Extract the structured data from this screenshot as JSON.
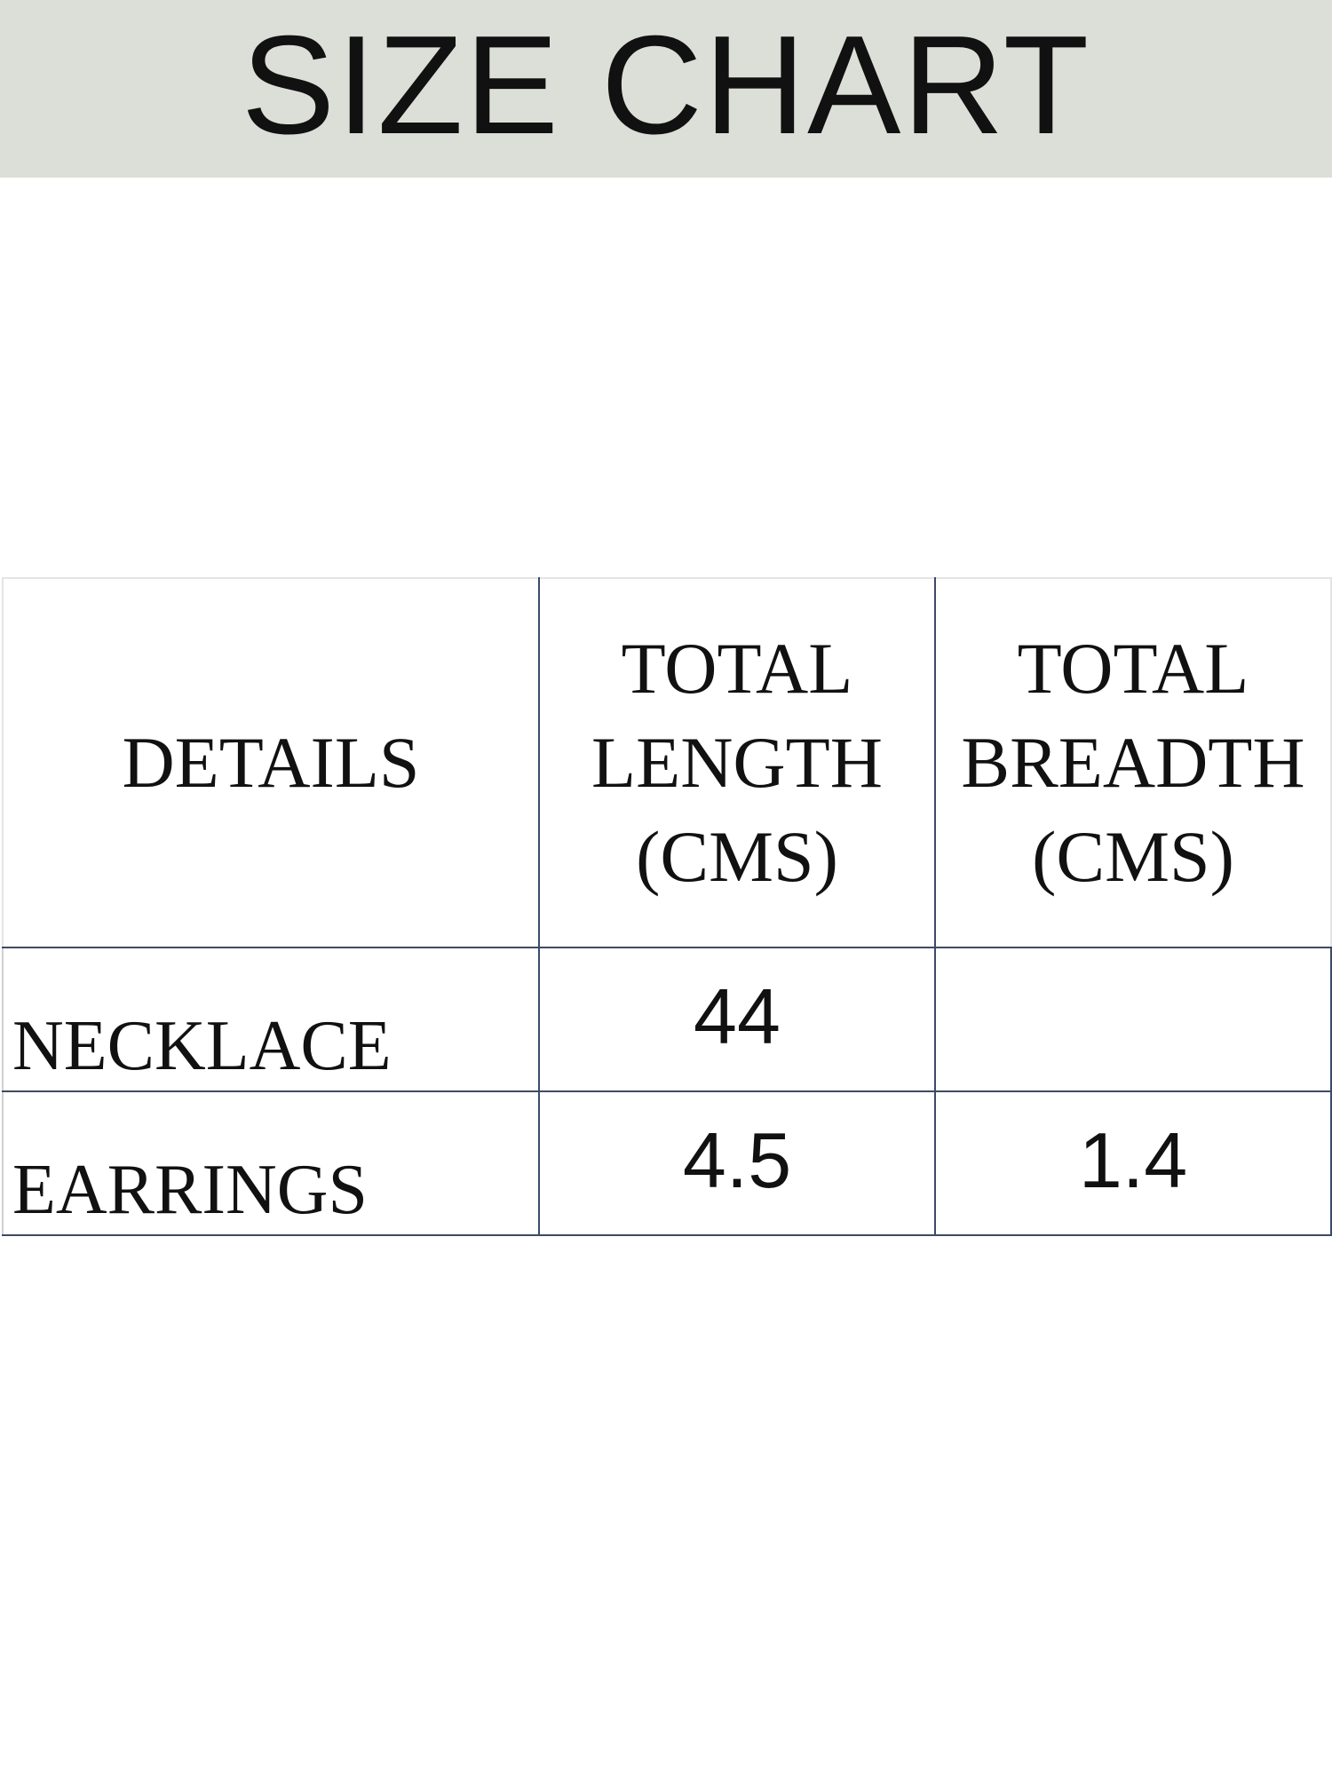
{
  "title": "SIZE CHART",
  "table": {
    "headers": [
      {
        "lines": [
          "DETAILS"
        ]
      },
      {
        "lines": [
          "TOTAL",
          "LENGTH",
          "(CMS)"
        ]
      },
      {
        "lines": [
          "TOTAL",
          "BREADTH",
          "(CMS)"
        ]
      }
    ],
    "rows": [
      {
        "item": "NECKLACE",
        "length": "44",
        "breadth": ""
      },
      {
        "item": "EARRINGS",
        "length": "4.5",
        "breadth": "1.4"
      }
    ]
  },
  "colors": {
    "header_band": "#dcdfd8",
    "table_border": "#3a4a6b",
    "text": "#111111"
  }
}
